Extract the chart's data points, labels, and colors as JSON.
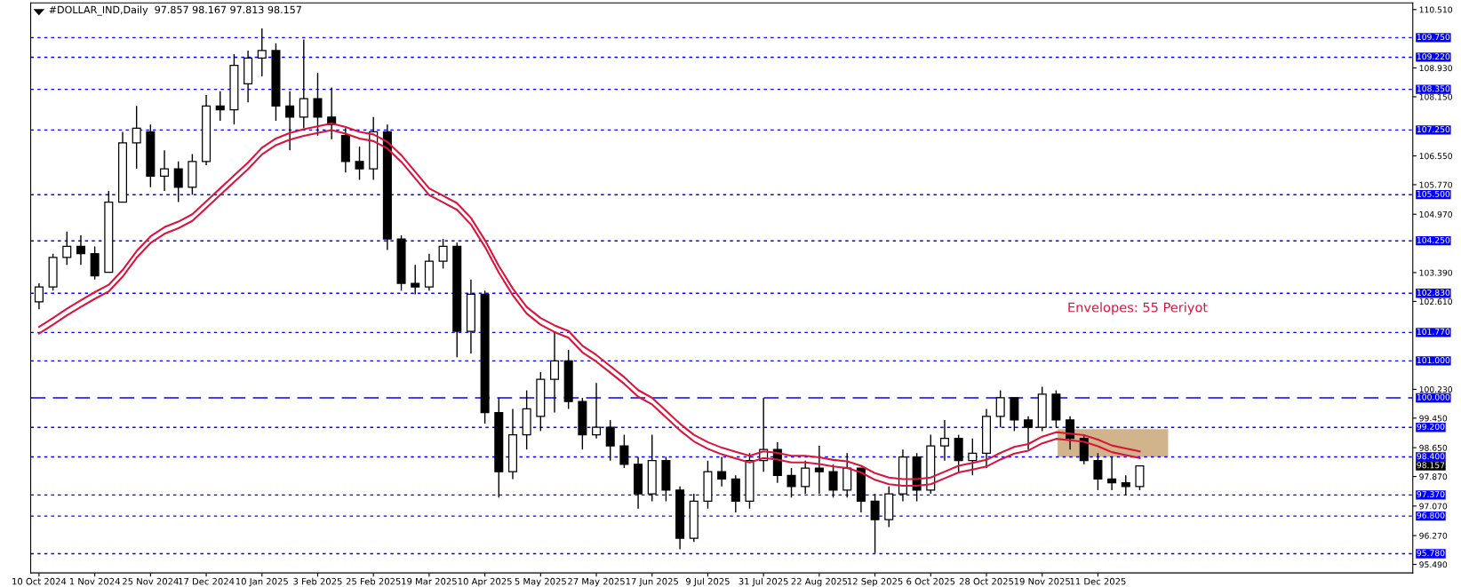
{
  "chart_data": {
    "type": "candlestick",
    "title": "#DOLLAR_IND,Daily  97.857 98.167 97.813 98.157",
    "categories": [
      "10 Oct 2024",
      null,
      null,
      null,
      "1 Nov 2024",
      null,
      null,
      null,
      "25 Nov 2024",
      null,
      null,
      null,
      "17 Dec 2024",
      null,
      null,
      null,
      "10 Jan 2025",
      null,
      null,
      null,
      "3 Feb 2025",
      null,
      null,
      null,
      "25 Feb 2025",
      null,
      null,
      null,
      "19 Mar 2025",
      null,
      null,
      null,
      "10 Apr 2025",
      null,
      null,
      null,
      "5 May 2025",
      null,
      null,
      null,
      "27 May 2025",
      null,
      null,
      null,
      "17 Jun 2025",
      null,
      null,
      null,
      "9 Jul 2025",
      null,
      null,
      null,
      "31 Jul 2025",
      null,
      null,
      null,
      "22 Aug 2025",
      null,
      null,
      null,
      "12 Sep 2025",
      null,
      null,
      null,
      "6 Oct 2025",
      null,
      null,
      null,
      "28 Oct 2025",
      null,
      null,
      null,
      "19 Nov 2025",
      null,
      null,
      null,
      "11 Dec 2025",
      null,
      null,
      null,
      null,
      null,
      null,
      null,
      null,
      null,
      null,
      null,
      null,
      null,
      null,
      null,
      null,
      null,
      null,
      null,
      null,
      null,
      null
    ],
    "ohlc": [
      [
        102.6,
        103.1,
        102.4,
        103.0
      ],
      [
        103.0,
        103.9,
        102.9,
        103.8
      ],
      [
        103.8,
        104.5,
        103.6,
        104.1
      ],
      [
        104.1,
        104.4,
        103.6,
        103.9
      ],
      [
        103.9,
        104.1,
        103.2,
        103.3
      ],
      [
        103.4,
        105.6,
        103.4,
        105.3
      ],
      [
        105.3,
        107.2,
        105.3,
        106.9
      ],
      [
        106.9,
        107.9,
        106.2,
        107.3
      ],
      [
        107.2,
        107.4,
        105.7,
        106.0
      ],
      [
        106.0,
        106.7,
        105.6,
        106.2
      ],
      [
        106.2,
        106.4,
        105.3,
        105.7
      ],
      [
        105.7,
        106.6,
        105.5,
        106.4
      ],
      [
        106.4,
        108.2,
        106.3,
        107.9
      ],
      [
        107.9,
        108.3,
        107.5,
        107.8
      ],
      [
        107.8,
        109.3,
        107.4,
        109.0
      ],
      [
        108.5,
        109.4,
        108.0,
        109.2
      ],
      [
        109.2,
        110.0,
        108.7,
        109.4
      ],
      [
        109.4,
        109.6,
        107.5,
        107.9
      ],
      [
        107.9,
        108.3,
        106.7,
        107.6
      ],
      [
        107.6,
        109.7,
        107.3,
        108.1
      ],
      [
        108.1,
        108.8,
        107.1,
        107.6
      ],
      [
        107.6,
        108.4,
        107.0,
        107.4
      ],
      [
        107.1,
        107.3,
        106.1,
        106.4
      ],
      [
        106.4,
        106.8,
        105.9,
        106.2
      ],
      [
        106.2,
        107.6,
        105.9,
        107.2
      ],
      [
        107.2,
        107.4,
        104.0,
        104.3
      ],
      [
        104.3,
        104.4,
        102.9,
        103.1
      ],
      [
        103.1,
        103.6,
        102.8,
        103.0
      ],
      [
        103.0,
        103.9,
        102.9,
        103.7
      ],
      [
        103.7,
        104.3,
        103.5,
        104.1
      ],
      [
        104.1,
        104.2,
        101.1,
        101.8
      ],
      [
        101.8,
        103.2,
        101.2,
        102.8
      ],
      [
        102.8,
        102.9,
        99.3,
        99.6
      ],
      [
        99.6,
        100.0,
        97.3,
        98.0
      ],
      [
        98.0,
        99.7,
        97.8,
        99.0
      ],
      [
        99.0,
        100.2,
        98.6,
        99.7
      ],
      [
        99.5,
        100.7,
        99.1,
        100.5
      ],
      [
        100.5,
        101.8,
        99.6,
        101.0
      ],
      [
        101.0,
        101.3,
        99.7,
        99.9
      ],
      [
        99.9,
        100.0,
        98.6,
        99.0
      ],
      [
        99.0,
        100.4,
        98.9,
        99.2
      ],
      [
        99.2,
        99.4,
        98.3,
        98.7
      ],
      [
        98.7,
        99.0,
        98.1,
        98.2
      ],
      [
        98.2,
        98.4,
        97.0,
        97.4
      ],
      [
        97.4,
        99.0,
        97.2,
        98.3
      ],
      [
        98.3,
        98.4,
        97.2,
        97.5
      ],
      [
        97.5,
        97.6,
        95.9,
        96.2
      ],
      [
        96.2,
        97.4,
        96.1,
        97.2
      ],
      [
        97.2,
        98.3,
        97.0,
        98.0
      ],
      [
        98.0,
        98.4,
        97.6,
        97.8
      ],
      [
        97.8,
        97.9,
        96.9,
        97.2
      ],
      [
        97.2,
        98.5,
        97.0,
        98.3
      ],
      [
        98.3,
        100.0,
        98.0,
        98.6
      ],
      [
        98.6,
        98.8,
        97.7,
        97.9
      ],
      [
        97.9,
        98.1,
        97.3,
        97.6
      ],
      [
        97.6,
        98.3,
        97.4,
        98.1
      ],
      [
        98.1,
        98.7,
        97.4,
        98.0
      ],
      [
        98.0,
        98.2,
        97.3,
        97.5
      ],
      [
        97.5,
        98.5,
        97.3,
        98.1
      ],
      [
        98.1,
        98.1,
        96.9,
        97.2
      ],
      [
        97.2,
        97.4,
        95.8,
        96.7
      ],
      [
        96.7,
        97.6,
        96.5,
        97.4
      ],
      [
        97.4,
        98.6,
        97.2,
        98.4
      ],
      [
        98.4,
        98.5,
        97.2,
        97.5
      ],
      [
        97.5,
        99.0,
        97.4,
        98.7
      ],
      [
        98.7,
        99.4,
        98.3,
        98.9
      ],
      [
        98.9,
        99.0,
        98.0,
        98.3
      ],
      [
        98.3,
        98.9,
        97.9,
        98.5
      ],
      [
        98.5,
        99.7,
        98.1,
        99.5
      ],
      [
        99.5,
        100.2,
        99.2,
        100.0
      ],
      [
        100.0,
        100.0,
        99.1,
        99.4
      ],
      [
        99.4,
        99.5,
        98.6,
        99.2
      ],
      [
        99.2,
        100.3,
        99.1,
        100.1
      ],
      [
        100.1,
        100.2,
        99.2,
        99.4
      ],
      [
        99.4,
        99.5,
        98.6,
        98.9
      ],
      [
        98.9,
        99.0,
        98.2,
        98.3
      ],
      [
        98.3,
        98.5,
        97.5,
        97.8
      ],
      [
        97.8,
        98.4,
        97.5,
        97.7
      ],
      [
        97.7,
        97.9,
        97.37,
        97.6
      ],
      [
        97.6,
        98.167,
        97.5,
        98.157
      ],
      null,
      null,
      null,
      null,
      null,
      null,
      null,
      null,
      null,
      null,
      null,
      null,
      null,
      null,
      null,
      null,
      null,
      null,
      null
    ],
    "series": [
      {
        "type": "line",
        "color": "#dc143c",
        "values": [
          101.92,
          102.16,
          102.41,
          102.64,
          102.86,
          103.06,
          103.46,
          103.97,
          104.37,
          104.62,
          104.77,
          104.97,
          105.32,
          105.67,
          106.02,
          106.37,
          106.77,
          107.02,
          107.17,
          107.27,
          107.35,
          107.43,
          107.33,
          107.2,
          107.13,
          106.93,
          106.57,
          106.12,
          105.67,
          105.47,
          105.27,
          104.87,
          104.27,
          103.57,
          102.96,
          102.46,
          102.16,
          101.96,
          101.81,
          101.41,
          101.16,
          100.86,
          100.56,
          100.21,
          100.0,
          99.65,
          99.3,
          99.0,
          98.8,
          98.65,
          98.54,
          98.43,
          98.55,
          98.51,
          98.43,
          98.43,
          98.39,
          98.32,
          98.28,
          98.16,
          97.96,
          97.84,
          97.8,
          97.8,
          97.84,
          98.0,
          98.16,
          98.24,
          98.32,
          98.51,
          98.67,
          98.75,
          98.95,
          99.07,
          99.03,
          98.99,
          98.87,
          98.71,
          98.63,
          98.55,
          null,
          null,
          null,
          null,
          null,
          null,
          null,
          null,
          null,
          null,
          null,
          null,
          null,
          null,
          null,
          null,
          null,
          null,
          null
        ]
      },
      {
        "type": "line",
        "color": "#dc143c",
        "values": [
          101.74,
          101.98,
          102.23,
          102.46,
          102.68,
          102.88,
          103.28,
          103.79,
          104.19,
          104.44,
          104.59,
          104.79,
          105.14,
          105.49,
          105.84,
          106.19,
          106.59,
          106.84,
          106.99,
          107.09,
          107.17,
          107.25,
          107.15,
          107.02,
          106.95,
          106.75,
          106.39,
          105.94,
          105.49,
          105.29,
          105.09,
          104.69,
          104.09,
          103.39,
          102.78,
          102.28,
          101.98,
          101.78,
          101.63,
          101.23,
          100.98,
          100.68,
          100.38,
          100.03,
          99.82,
          99.47,
          99.12,
          98.82,
          98.62,
          98.47,
          98.36,
          98.25,
          98.37,
          98.33,
          98.25,
          98.25,
          98.21,
          98.14,
          98.1,
          97.98,
          97.78,
          97.66,
          97.62,
          97.62,
          97.66,
          97.82,
          97.98,
          98.06,
          98.14,
          98.33,
          98.49,
          98.57,
          98.77,
          98.89,
          98.85,
          98.81,
          98.69,
          98.53,
          98.45,
          98.37,
          null,
          null,
          null,
          null,
          null,
          null,
          null,
          null,
          null,
          null,
          null,
          null,
          null,
          null,
          null,
          null,
          null,
          null,
          null
        ]
      }
    ],
    "annotations": [
      "Envelopes: 55 Periyot",
      "98.157"
    ],
    "ref_lines": [
      {
        "axis": "y",
        "value": 109.75,
        "label": "109.750",
        "color": "#0000ff",
        "line_style": "dotted"
      },
      {
        "axis": "y",
        "value": 109.22,
        "label": "109.220",
        "color": "#0000ff",
        "line_style": "dotted"
      },
      {
        "axis": "y",
        "value": 108.35,
        "label": "108.350",
        "color": "#0000ff",
        "line_style": "dotted"
      },
      {
        "axis": "y",
        "value": 107.25,
        "label": "107.250",
        "color": "#0000ff",
        "line_style": "dotted"
      },
      {
        "axis": "y",
        "value": 105.5,
        "label": "105.500",
        "color": "#0000ff",
        "line_style": "dotted"
      },
      {
        "axis": "y",
        "value": 104.25,
        "label": "104.250",
        "color": "#0000ff",
        "line_style": "dotted"
      },
      {
        "axis": "y",
        "value": 102.83,
        "label": "102.830",
        "color": "#0000ff",
        "line_style": "dotted"
      },
      {
        "axis": "y",
        "value": 101.77,
        "label": "101.770",
        "color": "#0000ff",
        "line_style": "dotted"
      },
      {
        "axis": "y",
        "value": 101.0,
        "label": "101.000",
        "color": "#0000ff",
        "line_style": "dotted"
      },
      {
        "axis": "y",
        "value": 100.0,
        "label": "100.000",
        "color": "#0000ff",
        "line_style": "dashed"
      },
      {
        "axis": "y",
        "value": 99.2,
        "label": "99.200",
        "color": "#0000ff",
        "line_style": "dotted"
      },
      {
        "axis": "y",
        "value": 98.4,
        "label": "98.400",
        "color": "#0000ff",
        "line_style": "dotted"
      },
      {
        "axis": "y",
        "value": 97.37,
        "label": "97.370",
        "color": "#0000ff",
        "line_style": "dotted"
      },
      {
        "axis": "y",
        "value": 96.8,
        "label": "96.800",
        "color": "#0000ff",
        "line_style": "dotted"
      },
      {
        "axis": "y",
        "value": 95.78,
        "label": "95.780",
        "color": "#0000ff",
        "line_style": "dotted"
      }
    ],
    "bands": [
      {
        "axis": "y",
        "from": 98.4,
        "to": 99.15,
        "color": "#d2b48c"
      }
    ],
    "ylim": [
      95.26,
      110.69
    ],
    "yticks": [
      {
        "value": 110.51,
        "label": "110.510"
      },
      {
        "value": 108.93,
        "label": "108.930"
      },
      {
        "value": 108.15,
        "label": "108.150"
      },
      {
        "value": 106.55,
        "label": "106.550"
      },
      {
        "value": 105.77,
        "label": "105.770"
      },
      {
        "value": 104.97,
        "label": "104.970"
      },
      {
        "value": 103.39,
        "label": "103.390"
      },
      {
        "value": 102.61,
        "label": "102.610"
      },
      {
        "value": 100.23,
        "label": "100.230"
      },
      {
        "value": 99.45,
        "label": "99.450"
      },
      {
        "value": 98.65,
        "label": "98.650"
      },
      {
        "value": 97.87,
        "label": "97.870"
      },
      {
        "value": 97.07,
        "label": "97.070"
      },
      {
        "value": 96.27,
        "label": "96.270"
      },
      {
        "value": 95.49,
        "label": "95.490"
      }
    ]
  }
}
